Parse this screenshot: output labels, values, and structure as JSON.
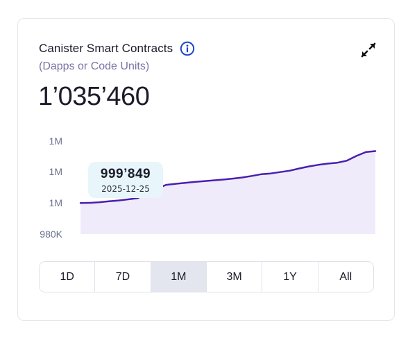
{
  "card": {
    "title": "Canister Smart Contracts",
    "subtitle": "(Dapps or Code Units)",
    "value": "1’035’460",
    "info_icon": "info-circle-icon",
    "expand_icon": "expand-arrows-icon"
  },
  "tooltip": {
    "value": "999’849",
    "date": "2025-12-25"
  },
  "range": {
    "selected": "1M",
    "options": [
      "1D",
      "7D",
      "1M",
      "3M",
      "1Y",
      "All"
    ]
  },
  "colors": {
    "accent": "#4a1fae",
    "fill": "#efebfa",
    "info": "#1f45c9",
    "active_bg": "#e3e6ef",
    "tooltip_bg": "#e8f6fb"
  },
  "chart_data": {
    "type": "area",
    "ytick_labels": [
      "1M",
      "1M",
      "1M",
      "980K"
    ],
    "ylim": [
      980000,
      1040000
    ],
    "values": [
      999849,
      1000000,
      1000400,
      1001000,
      1001500,
      1002200,
      1003000,
      1006000,
      1009000,
      1011500,
      1012200,
      1012800,
      1013400,
      1013900,
      1014400,
      1014900,
      1015500,
      1016200,
      1017200,
      1018300,
      1018800,
      1019700,
      1020600,
      1022000,
      1023300,
      1024300,
      1025100,
      1025700,
      1027000,
      1030000,
      1032500,
      1033100
    ]
  }
}
